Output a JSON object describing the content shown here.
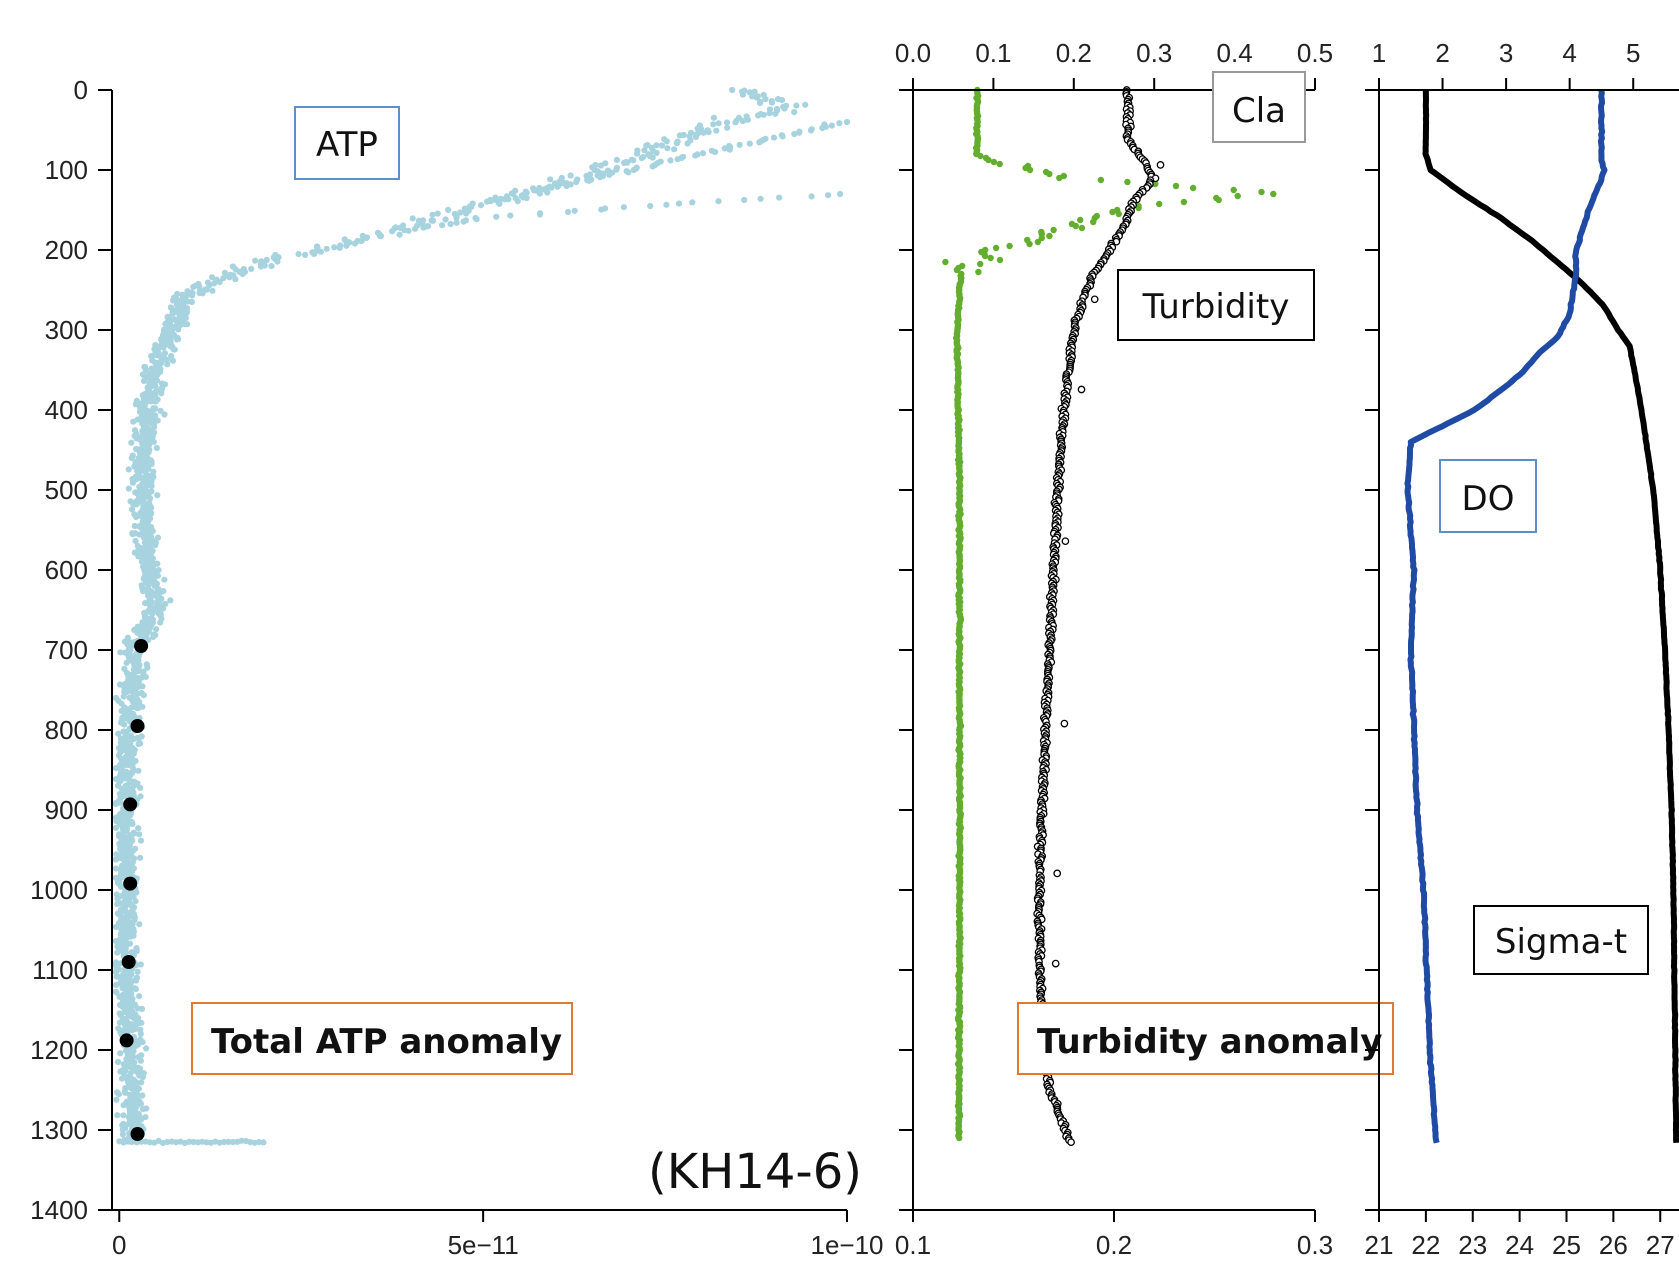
{
  "chart_data": [
    {
      "type": "scatter",
      "name": "atp-panel",
      "y_axis": {
        "ticks": [
          0,
          100,
          200,
          300,
          400,
          500,
          600,
          700,
          800,
          900,
          1000,
          1100,
          1200,
          1300,
          1400
        ],
        "range": [
          0,
          1400
        ],
        "inverted": true
      },
      "x_axis": {
        "tick_values": [
          0,
          5e-11,
          1e-10
        ],
        "tick_labels": [
          "0",
          "5e−11",
          "1e−10"
        ],
        "range": [
          -1e-12,
          1e-10
        ]
      },
      "labels": {
        "atp": "ATP",
        "anomaly": "Total ATP anomaly",
        "cruise": "(KH14-6)"
      },
      "series": [
        {
          "name": "ATP",
          "color": "#a7d3df",
          "profile": [
            [
              0,
              8.5e-11
            ],
            [
              20,
              9.2e-11
            ],
            [
              50,
              8e-11
            ],
            [
              80,
              7.2e-11
            ],
            [
              110,
              6.3e-11
            ],
            [
              130,
              5.6e-11
            ],
            [
              150,
              4.8e-11
            ],
            [
              170,
              4e-11
            ],
            [
              190,
              3.2e-11
            ],
            [
              210,
              2.2e-11
            ],
            [
              230,
              1.5e-11
            ],
            [
              260,
              9e-12
            ],
            [
              300,
              7e-12
            ],
            [
              350,
              5e-12
            ],
            [
              400,
              4e-12
            ],
            [
              500,
              3e-12
            ],
            [
              600,
              4e-12
            ],
            [
              650,
              5e-12
            ],
            [
              700,
              2e-12
            ],
            [
              800,
              1.5e-12
            ],
            [
              900,
              1e-12
            ],
            [
              1000,
              1e-12
            ],
            [
              1100,
              1e-12
            ],
            [
              1200,
              1.5e-12
            ],
            [
              1300,
              2e-12
            ]
          ],
          "branches": [
            [
              [
                40,
                1e-10
              ],
              [
                60,
                9e-11
              ],
              [
                80,
                8e-11
              ],
              [
                100,
                7e-11
              ],
              [
                120,
                6e-11
              ],
              [
                140,
                5e-11
              ]
            ],
            [
              [
                130,
                1e-10
              ],
              [
                140,
                8e-11
              ],
              [
                150,
                6.5e-11
              ],
              [
                160,
                5e-11
              ],
              [
                175,
                4e-11
              ]
            ]
          ]
        },
        {
          "name": "Total ATP anomaly",
          "color": "#000000",
          "points": [
            [
              695,
              3e-12
            ],
            [
              795,
              2.5e-12
            ],
            [
              893,
              1.5e-12
            ],
            [
              992,
              1.5e-12
            ],
            [
              1090,
              1.3e-12
            ],
            [
              1188,
              1e-12
            ],
            [
              1305,
              2.5e-12
            ]
          ]
        }
      ]
    },
    {
      "type": "scatter",
      "name": "turbidity-cla-panel",
      "y_axis": {
        "range": [
          0,
          1400
        ],
        "inverted": true
      },
      "x_axis_top": {
        "name": "Cla",
        "tick_values": [
          0.0,
          0.1,
          0.2,
          0.3,
          0.4,
          0.5
        ],
        "tick_labels": [
          "0.0",
          "0.1",
          "0.2",
          "0.3",
          "0.4",
          "0.5"
        ],
        "range": [
          0.0,
          0.5
        ]
      },
      "x_axis_bottom": {
        "name": "Turbidity",
        "tick_values": [
          0.1,
          0.2,
          0.3
        ],
        "tick_labels": [
          "0.1",
          "0.2",
          "0.3"
        ],
        "range": [
          0.1,
          0.3
        ]
      },
      "labels": {
        "cla": "Cla",
        "turbidity": "Turbidity",
        "anomaly": "Turbidity anomaly"
      },
      "series": [
        {
          "name": "Cla",
          "axis": "top",
          "color": "#63ad2f",
          "profile": [
            [
              0,
              0.08
            ],
            [
              80,
              0.08
            ],
            [
              95,
              0.11
            ],
            [
              110,
              0.2
            ],
            [
              120,
              0.32
            ],
            [
              130,
              0.45
            ],
            [
              145,
              0.28
            ],
            [
              160,
              0.22
            ],
            [
              180,
              0.17
            ],
            [
              200,
              0.1
            ],
            [
              215,
              0.07
            ],
            [
              230,
              0.06
            ],
            [
              300,
              0.055
            ],
            [
              500,
              0.058
            ],
            [
              700,
              0.058
            ],
            [
              1000,
              0.058
            ],
            [
              1310,
              0.057
            ]
          ]
        },
        {
          "name": "Turbidity",
          "axis": "bottom",
          "color": "#000000",
          "profile": [
            [
              0,
              0.207
            ],
            [
              60,
              0.207
            ],
            [
              90,
              0.215
            ],
            [
              110,
              0.22
            ],
            [
              140,
              0.21
            ],
            [
              170,
              0.205
            ],
            [
              200,
              0.198
            ],
            [
              230,
              0.19
            ],
            [
              260,
              0.185
            ],
            [
              300,
              0.18
            ],
            [
              400,
              0.175
            ],
            [
              500,
              0.172
            ],
            [
              600,
              0.17
            ],
            [
              700,
              0.168
            ],
            [
              800,
              0.166
            ],
            [
              900,
              0.164
            ],
            [
              1000,
              0.163
            ],
            [
              1100,
              0.163
            ],
            [
              1200,
              0.166
            ],
            [
              1250,
              0.168
            ],
            [
              1300,
              0.176
            ],
            [
              1315,
              0.178
            ]
          ]
        }
      ]
    },
    {
      "type": "line",
      "name": "do-sigma-panel",
      "y_axis": {
        "range": [
          0,
          1400
        ],
        "inverted": true
      },
      "x_axis_top": {
        "name": "DO",
        "tick_values": [
          1,
          2,
          3,
          4,
          5
        ],
        "tick_labels": [
          "1",
          "2",
          "3",
          "4",
          "5"
        ],
        "range": [
          1,
          5.5
        ]
      },
      "x_axis_bottom": {
        "name": "Sigma-t",
        "tick_values": [
          21,
          22,
          23,
          24,
          25,
          26,
          27
        ],
        "tick_labels": [
          "21",
          "22",
          "23",
          "24",
          "25",
          "26",
          "27"
        ],
        "range": [
          21,
          27.4
        ]
      },
      "labels": {
        "do": "DO",
        "sigma": "Sigma-t"
      },
      "series": [
        {
          "name": "DO",
          "axis": "top",
          "color": "#1f4ba4",
          "profile": [
            [
              0,
              4.5
            ],
            [
              90,
              4.5
            ],
            [
              100,
              4.55
            ],
            [
              120,
              4.45
            ],
            [
              150,
              4.3
            ],
            [
              200,
              4.1
            ],
            [
              230,
              4.1
            ],
            [
              280,
              4.0
            ],
            [
              310,
              3.8
            ],
            [
              330,
              3.5
            ],
            [
              350,
              3.3
            ],
            [
              370,
              3.0
            ],
            [
              400,
              2.5
            ],
            [
              420,
              2.0
            ],
            [
              440,
              1.5
            ],
            [
              500,
              1.45
            ],
            [
              600,
              1.55
            ],
            [
              700,
              1.5
            ],
            [
              800,
              1.55
            ],
            [
              900,
              1.6
            ],
            [
              1000,
              1.7
            ],
            [
              1100,
              1.75
            ],
            [
              1200,
              1.8
            ],
            [
              1316,
              1.9
            ]
          ]
        },
        {
          "name": "Sigma-t",
          "axis": "bottom",
          "color": "#000000",
          "profile": [
            [
              0,
              22.0
            ],
            [
              80,
              22.0
            ],
            [
              100,
              22.1
            ],
            [
              130,
              22.8
            ],
            [
              160,
              23.6
            ],
            [
              190,
              24.3
            ],
            [
              220,
              24.9
            ],
            [
              240,
              25.3
            ],
            [
              270,
              25.8
            ],
            [
              300,
              26.1
            ],
            [
              320,
              26.35
            ],
            [
              400,
              26.6
            ],
            [
              500,
              26.85
            ],
            [
              600,
              27.0
            ],
            [
              700,
              27.1
            ],
            [
              800,
              27.18
            ],
            [
              900,
              27.24
            ],
            [
              1000,
              27.28
            ],
            [
              1100,
              27.3
            ],
            [
              1200,
              27.32
            ],
            [
              1316,
              27.34
            ]
          ]
        }
      ]
    }
  ]
}
